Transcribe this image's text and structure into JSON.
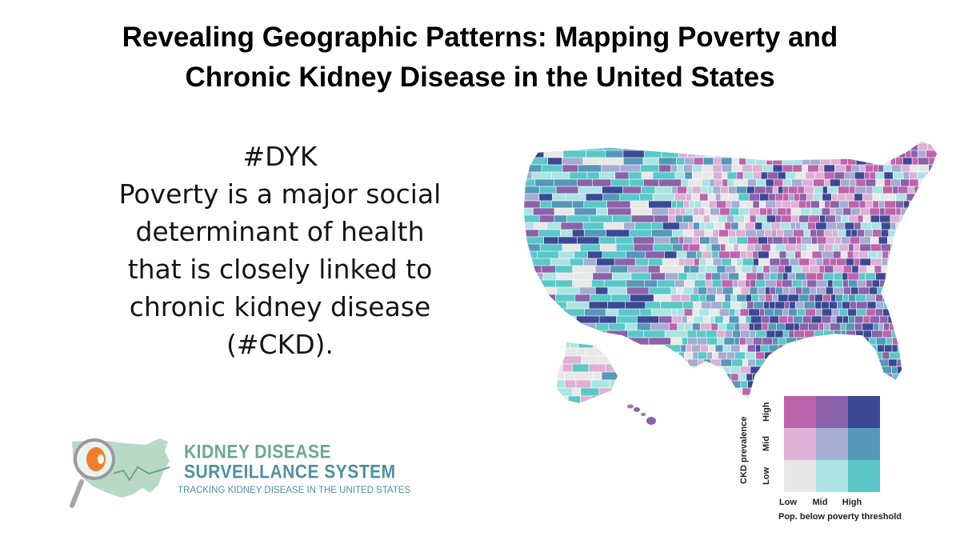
{
  "title": {
    "line1": "Revealing Geographic Patterns: Mapping Poverty and",
    "line2": "Chronic Kidney Disease in the United States"
  },
  "dyk": {
    "lines": [
      "#DYK",
      "Poverty is a major social",
      "determinant of health",
      "that is closely linked to",
      "chronic kidney disease",
      "(#CKD)."
    ]
  },
  "map": {
    "type": "bivariate choropleth (US counties)",
    "colors": {
      "low_low": "#e8e8e8",
      "low_mid": "#ace4e4",
      "low_high": "#5ac8c8",
      "mid_low": "#dfb0d6",
      "mid_mid": "#a5add3",
      "mid_high": "#5698b9",
      "high_low": "#be64ac",
      "high_mid": "#8c62aa",
      "high_high": "#3b4994"
    }
  },
  "legend": {
    "y_axis_label": "CKD prevalence",
    "y_ticks": [
      "High",
      "Mid",
      "Low"
    ],
    "x_ticks": [
      "Low",
      "Mid",
      "High"
    ],
    "x_axis_label": "Pop. below poverty threshold",
    "grid": [
      [
        "#be64ac",
        "#8c62aa",
        "#3b4994"
      ],
      [
        "#dfb0d6",
        "#a5add3",
        "#5698b9"
      ],
      [
        "#e8e8e8",
        "#ace4e4",
        "#5ac8c8"
      ]
    ]
  },
  "logo": {
    "line1": "KIDNEY DISEASE",
    "line2": "SURVEILLANCE SYSTEM",
    "tagline": "TRACKING KIDNEY DISEASE IN THE UNITED STATES",
    "icons": [
      "map-icon",
      "magnifying-glass-icon",
      "kidney-icon"
    ]
  }
}
